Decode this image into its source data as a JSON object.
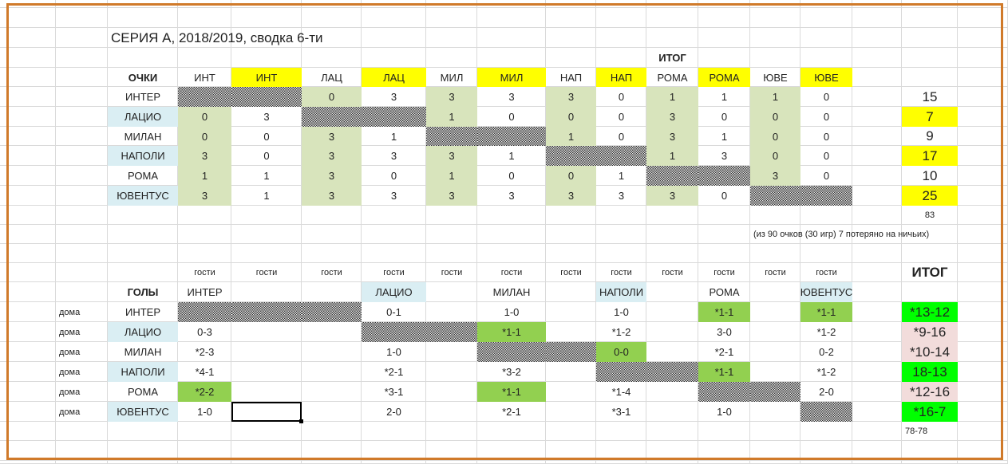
{
  "title": "СЕРИЯ А, 2018/2019, сводка 6-ти",
  "points": {
    "itog_label": "ИТОГ",
    "corner_label": "ОЧКИ",
    "headers": [
      "ИНТ",
      "ИНТ",
      "ЛАЦ",
      "ЛАЦ",
      "МИЛ",
      "МИЛ",
      "НАП",
      "НАП",
      "РОМА",
      "РОМА",
      "ЮВЕ",
      "ЮВЕ"
    ],
    "rows": [
      {
        "team": "ИНТЕР",
        "values": [
          null,
          null,
          "0",
          "3",
          "3",
          "3",
          "3",
          "0",
          "1",
          "1",
          "1",
          "0"
        ],
        "total": "15",
        "total_highlight": false,
        "team_highlight": false
      },
      {
        "team": "ЛАЦИО",
        "values": [
          "0",
          "3",
          null,
          null,
          "1",
          "0",
          "0",
          "0",
          "3",
          "0",
          "0",
          "0"
        ],
        "total": "7",
        "total_highlight": true,
        "team_highlight": true
      },
      {
        "team": "МИЛАН",
        "values": [
          "0",
          "0",
          "3",
          "1",
          null,
          null,
          "1",
          "0",
          "3",
          "1",
          "0",
          "0"
        ],
        "total": "9",
        "total_highlight": false,
        "team_highlight": false
      },
      {
        "team": "НАПОЛИ",
        "values": [
          "3",
          "0",
          "3",
          "3",
          "3",
          "1",
          null,
          null,
          "1",
          "3",
          "0",
          "0"
        ],
        "total": "17",
        "total_highlight": true,
        "team_highlight": true
      },
      {
        "team": "РОМА",
        "values": [
          "1",
          "1",
          "3",
          "0",
          "1",
          "0",
          "0",
          "1",
          null,
          null,
          "3",
          "0"
        ],
        "total": "10",
        "total_highlight": false,
        "team_highlight": false
      },
      {
        "team": "ЮВЕНТУС",
        "values": [
          "3",
          "1",
          "3",
          "3",
          "3",
          "3",
          "3",
          "3",
          "3",
          "0",
          null,
          null
        ],
        "total": "25",
        "total_highlight": true,
        "team_highlight": true
      }
    ],
    "sum": "83",
    "note": "(из 90 очков (30 игр) 7 потеряно на ничьих)"
  },
  "goals": {
    "guest_label": "гости",
    "home_label": "дома",
    "corner_label": "ГОЛЫ",
    "itog_label": "ИТОГ",
    "columns": [
      "ИНТЕР",
      "",
      "",
      "ЛАЦИО",
      "",
      "МИЛАН",
      "",
      "НАПОЛИ",
      "",
      "РОМА",
      "",
      "ЮВЕНТУС"
    ],
    "column_highlight": [
      3,
      7,
      11
    ],
    "rows": [
      {
        "team": "ИНТЕР",
        "values": [
          null,
          null,
          null,
          "0-1",
          "",
          "1-0",
          "",
          "1-0",
          "",
          "*1-1",
          "",
          "*1-1"
        ],
        "green": [
          9,
          11
        ],
        "total": "*13-12",
        "total_status": "lime",
        "team_highlight": false
      },
      {
        "team": "ЛАЦИО",
        "values": [
          "0-3",
          "",
          "",
          null,
          null,
          "*1-1",
          "",
          "*1-2",
          "",
          "3-0",
          "",
          "*1-2"
        ],
        "green": [
          5
        ],
        "total": "*9-16",
        "total_status": "pink",
        "team_highlight": true
      },
      {
        "team": "МИЛАН",
        "values": [
          "*2-3",
          "",
          "",
          "1-0",
          "",
          null,
          null,
          "0-0",
          "",
          "*2-1",
          "",
          "0-2"
        ],
        "green": [
          7
        ],
        "total": "*10-14",
        "total_status": "pink",
        "team_highlight": false
      },
      {
        "team": "НАПОЛИ",
        "values": [
          "*4-1",
          "",
          "",
          "*2-1",
          "",
          "*3-2",
          "",
          null,
          null,
          "*1-1",
          "",
          "*1-2"
        ],
        "green": [
          9
        ],
        "total": "18-13",
        "total_status": "lime",
        "team_highlight": true
      },
      {
        "team": "РОМА",
        "values": [
          "*2-2",
          "",
          "",
          "*3-1",
          "",
          "*1-1",
          "",
          "*1-4",
          "",
          null,
          null,
          "2-0"
        ],
        "green": [
          0,
          5
        ],
        "total": "*12-16",
        "total_status": "pink",
        "team_highlight": false
      },
      {
        "team": "ЮВЕНТУС",
        "values": [
          "1-0",
          "",
          "",
          "2-0",
          "",
          "*2-1",
          "",
          "*3-1",
          "",
          "1-0",
          "",
          null
        ],
        "green": [],
        "total": "*16-7",
        "total_status": "lime",
        "team_highlight": true
      }
    ],
    "sum": "78-78",
    "guest_columns": [
      0,
      1,
      2,
      3,
      4,
      5,
      6,
      7,
      8,
      9,
      10,
      11
    ]
  },
  "colors": {
    "frame": "#d07a2a",
    "yellow": "#ffff00",
    "home": "#d8e4bc",
    "team": "#daeef3",
    "green": "#92d050",
    "lime": "#00ff00",
    "pink": "#f2dcdb"
  }
}
